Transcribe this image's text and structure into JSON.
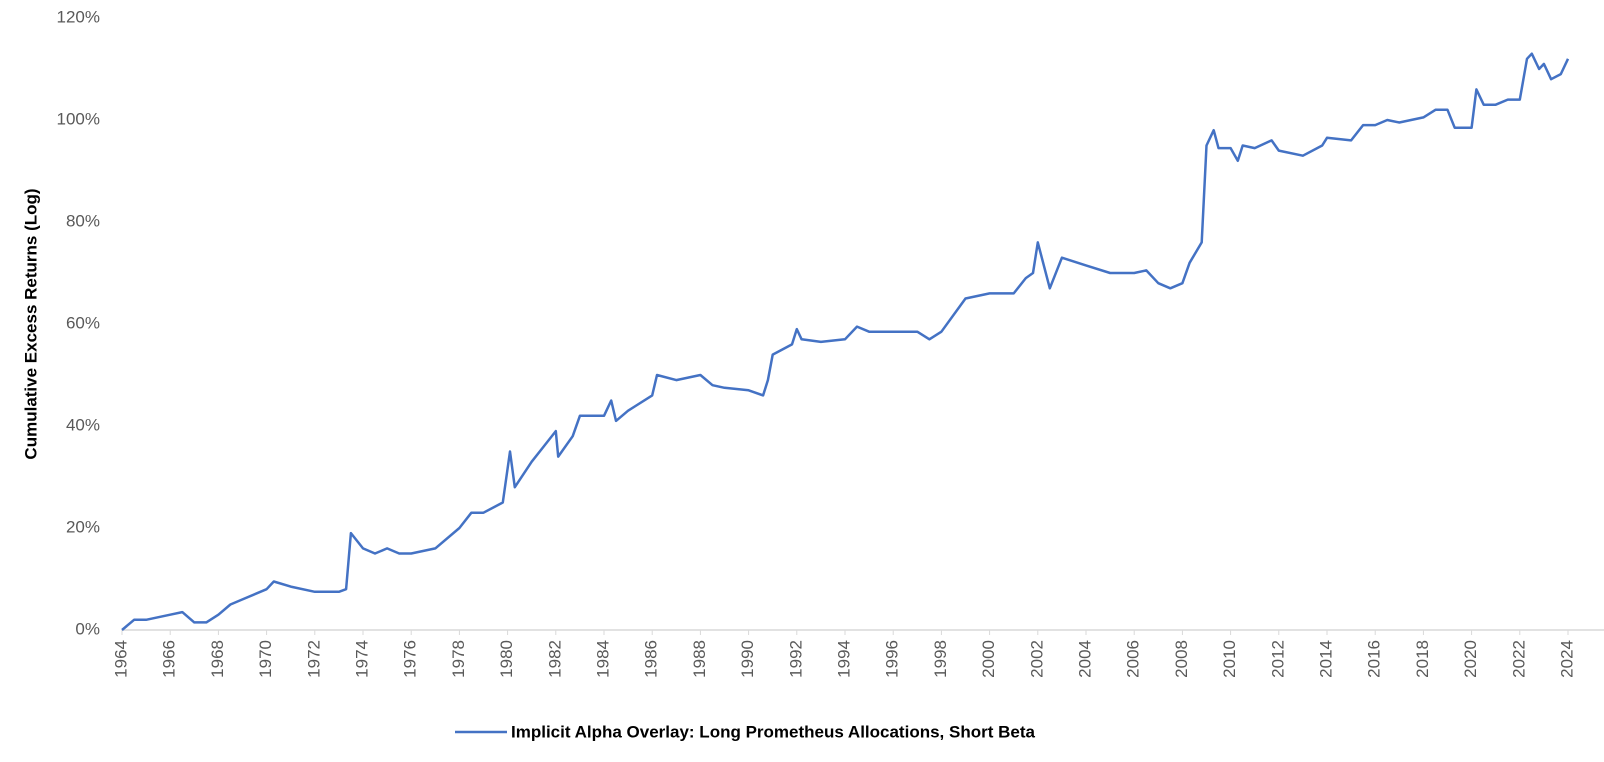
{
  "chart_data": {
    "type": "line",
    "y_label": "Cumulative Excess Returns (Log)",
    "xlim": [
      1964,
      2024
    ],
    "xticks": [
      1964,
      1966,
      1968,
      1970,
      1972,
      1974,
      1976,
      1978,
      1980,
      1982,
      1984,
      1986,
      1988,
      1990,
      1992,
      1994,
      1996,
      1998,
      2000,
      2002,
      2004,
      2006,
      2008,
      2010,
      2012,
      2014,
      2016,
      2018,
      2020,
      2022,
      2024
    ],
    "ylim": [
      0,
      120
    ],
    "yticks": [
      {
        "value": 0,
        "label": "0%"
      },
      {
        "value": 20,
        "label": "20%"
      },
      {
        "value": 40,
        "label": "40%"
      },
      {
        "value": 60,
        "label": "60%"
      },
      {
        "value": 80,
        "label": "80%"
      },
      {
        "value": 100,
        "label": "100%"
      },
      {
        "value": 120,
        "label": "120%"
      }
    ],
    "grid": false,
    "legend": "bottom",
    "x": [
      1964,
      1964.5,
      1965,
      1966,
      1966.5,
      1967,
      1967.5,
      1968,
      1968.5,
      1969,
      1970,
      1970.3,
      1971,
      1972,
      1973,
      1973.3,
      1973.5,
      1974,
      1974.5,
      1975,
      1975.5,
      1976,
      1977,
      1978,
      1978.5,
      1979,
      1979.8,
      1980.1,
      1980.3,
      1981,
      1981.5,
      1982,
      1982.1,
      1982.7,
      1983,
      1984,
      1984.3,
      1984.5,
      1985,
      1986,
      1986.2,
      1987,
      1988,
      1988.5,
      1989,
      1990,
      1990.6,
      1990.8,
      1991,
      1991.8,
      1992,
      1992.2,
      1993,
      1994,
      1994.5,
      1995,
      1996,
      1997,
      1997.5,
      1998,
      1999,
      2000,
      2001,
      2001.5,
      2001.8,
      2002,
      2002.5,
      2003,
      2004,
      2005,
      2006,
      2006.5,
      2007,
      2007.5,
      2008,
      2008.3,
      2008.8,
      2009,
      2009.3,
      2009.5,
      2010,
      2010.3,
      2010.5,
      2011,
      2011.7,
      2012,
      2013,
      2013.8,
      2014,
      2015,
      2015.5,
      2016,
      2016.5,
      2017,
      2018,
      2018.5,
      2019,
      2019.3,
      2020,
      2020.2,
      2020.5,
      2021,
      2021.5,
      2022,
      2022.3,
      2022.5,
      2022.8,
      2023,
      2023.3,
      2023.7,
      2024
    ],
    "series": [
      {
        "name": "Implicit Alpha Overlay: Long Prometheus Allocations, Short Beta",
        "color": "#4472c4",
        "values": [
          0,
          2,
          2,
          3,
          3.5,
          1.5,
          1.5,
          3,
          5,
          6,
          8,
          9.5,
          8.5,
          7.5,
          7.5,
          8,
          19,
          16,
          15,
          16,
          15,
          15,
          16,
          20,
          23,
          23,
          25,
          35,
          28,
          33,
          36,
          39,
          34,
          38,
          42,
          42,
          45,
          41,
          43,
          46,
          50,
          49,
          50,
          48,
          47.5,
          47,
          46,
          49,
          54,
          56,
          59,
          57,
          56.5,
          57,
          59.5,
          58.5,
          58.5,
          58.5,
          57,
          58.5,
          65,
          66,
          66,
          69,
          70,
          76,
          67,
          73,
          71.5,
          70,
          70,
          70.5,
          68,
          67,
          68,
          72,
          76,
          95,
          98,
          94.5,
          94.5,
          92,
          95,
          94.5,
          96,
          94,
          93,
          95,
          96.5,
          96,
          99,
          99,
          100,
          99.5,
          100.5,
          102,
          102,
          98.5,
          98.5,
          106,
          103,
          103,
          104,
          104,
          112,
          113,
          110,
          111,
          108,
          109,
          112
        ]
      }
    ]
  }
}
